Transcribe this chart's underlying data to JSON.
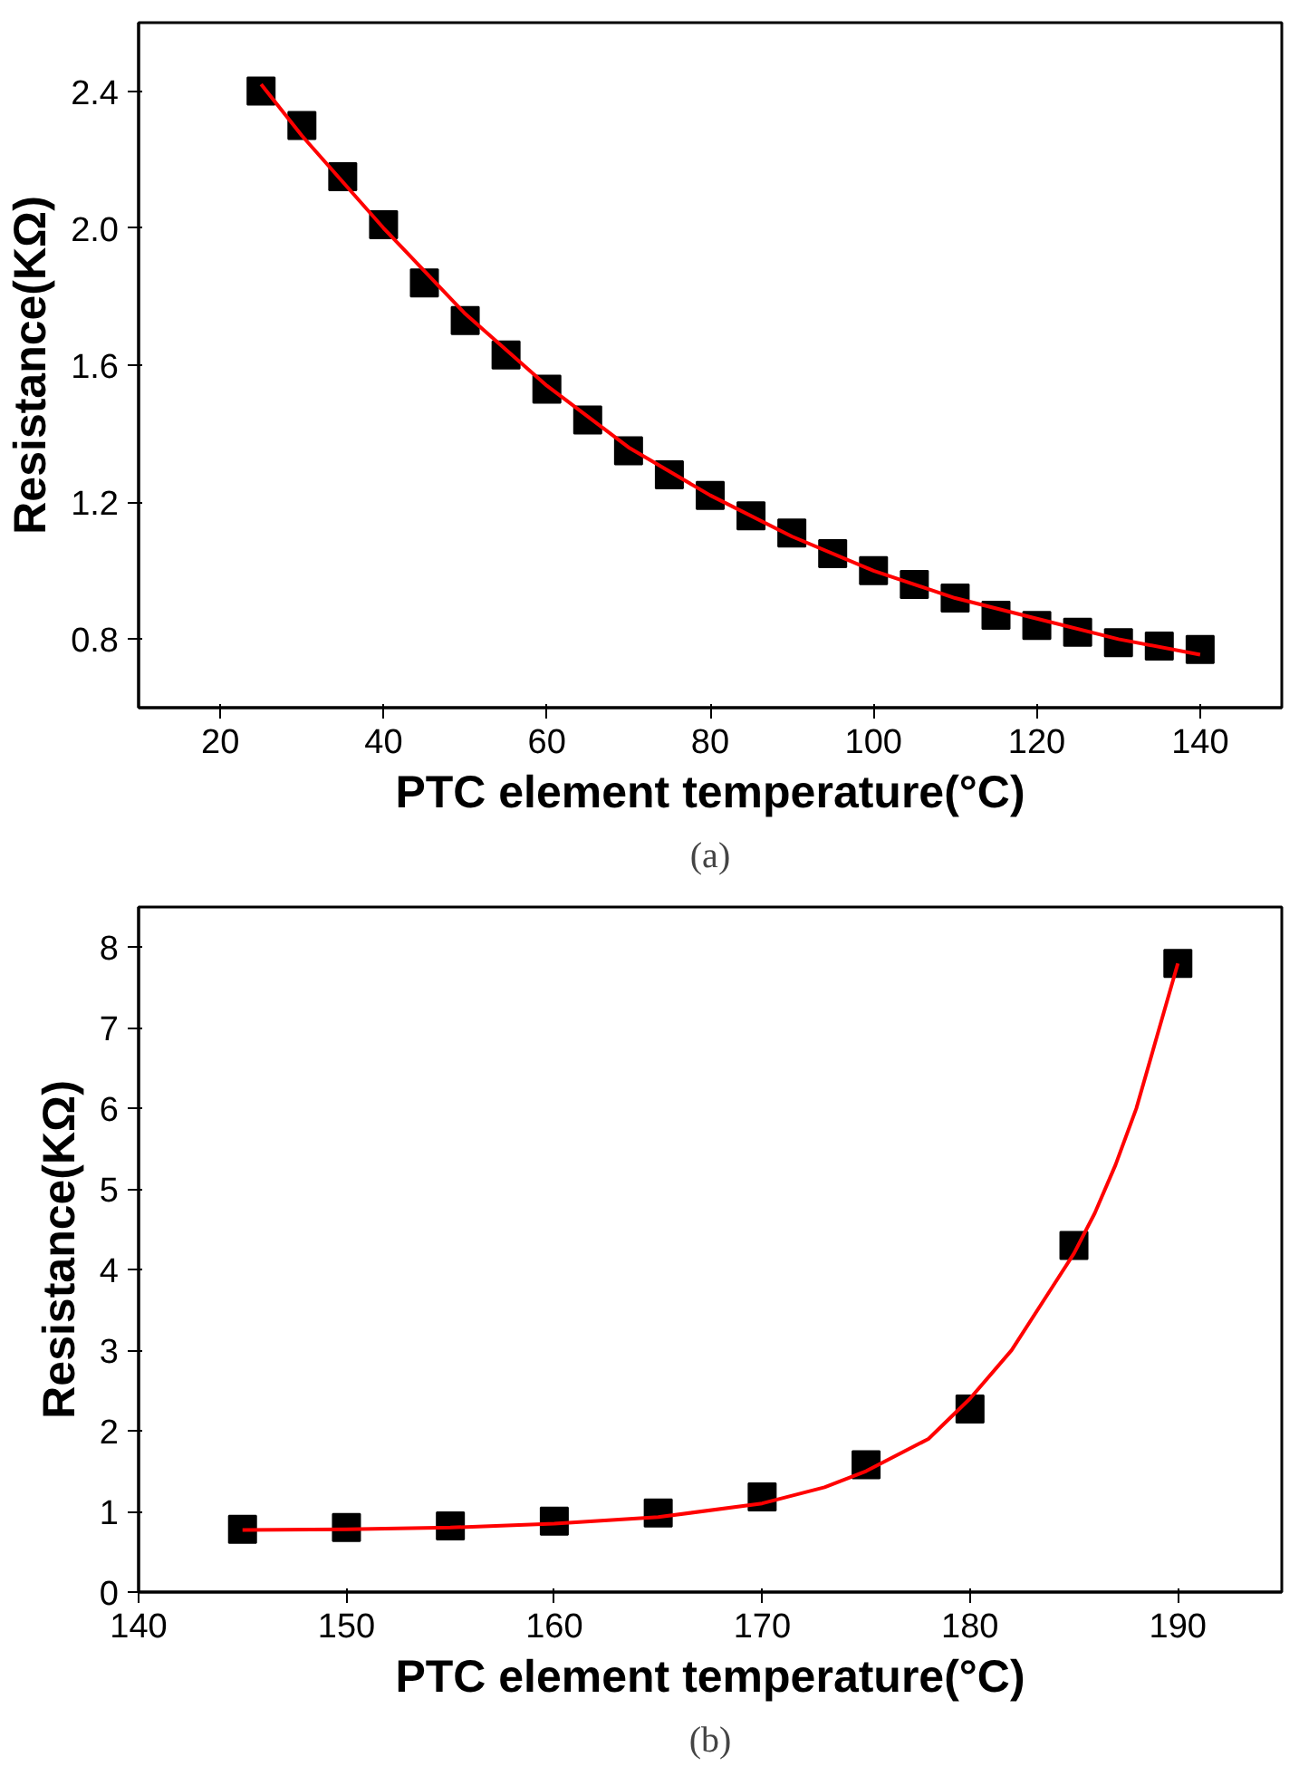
{
  "chart_data": [
    {
      "type": "scatter",
      "xlabel": "PTC element temperature(°C)",
      "ylabel": "Resistance(KΩ)",
      "annotations": [
        "(a)"
      ],
      "grid": false,
      "xlim": [
        10,
        150
      ],
      "ylim": [
        0.6,
        2.6
      ],
      "xticks": [
        20,
        40,
        60,
        80,
        100,
        120,
        140
      ],
      "yticks": [
        0.8,
        1.2,
        1.6,
        {
          "value": 2,
          "label": "2.0"
        },
        2.4
      ],
      "series": [
        {
          "marker": "square",
          "color": "#000000",
          "x": [
            25,
            30,
            35,
            40,
            45,
            50,
            55,
            60,
            65,
            70,
            75,
            80,
            85,
            90,
            95,
            100,
            105,
            110,
            115,
            120,
            125,
            130,
            135,
            140
          ],
          "values": [
            2.4,
            2.3,
            2.15,
            2.01,
            1.84,
            1.73,
            1.63,
            1.53,
            1.44,
            1.35,
            1.28,
            1.22,
            1.16,
            1.11,
            1.05,
            1.0,
            0.96,
            0.92,
            0.87,
            0.84,
            0.82,
            0.79,
            0.78,
            0.77
          ]
        },
        {
          "type": "line",
          "marker": "none",
          "color": "#ff0000",
          "line_style": "solid",
          "x": [
            25,
            30,
            40,
            50,
            60,
            70,
            80,
            90,
            100,
            110,
            120,
            130,
            140
          ],
          "values": [
            2.42,
            2.27,
            2.0,
            1.75,
            1.54,
            1.36,
            1.22,
            1.1,
            1.0,
            0.92,
            0.86,
            0.8,
            0.755
          ]
        }
      ]
    },
    {
      "type": "scatter",
      "xlabel": "PTC element temperature(°C)",
      "ylabel": "Resistance(KΩ)",
      "annotations": [
        "(b)"
      ],
      "grid": false,
      "xlim": [
        140,
        195
      ],
      "ylim": [
        0,
        8.5
      ],
      "xticks": [
        140,
        150,
        160,
        170,
        180,
        190
      ],
      "yticks": [
        0,
        1,
        2,
        3,
        4,
        5,
        6,
        7,
        8
      ],
      "series": [
        {
          "marker": "square",
          "color": "#000000",
          "x": [
            145,
            150,
            155,
            160,
            165,
            170,
            175,
            180,
            185,
            190
          ],
          "values": [
            0.78,
            0.8,
            0.82,
            0.88,
            0.98,
            1.18,
            1.58,
            2.27,
            4.3,
            7.8
          ]
        },
        {
          "type": "line",
          "marker": "none",
          "color": "#ff0000",
          "line_style": "solid",
          "x": [
            145,
            150,
            155,
            160,
            165,
            170,
            173,
            175,
            178,
            180,
            182,
            184,
            185,
            186,
            187,
            188,
            189,
            190
          ],
          "values": [
            0.77,
            0.78,
            0.8,
            0.85,
            0.93,
            1.1,
            1.3,
            1.5,
            1.9,
            2.4,
            3.0,
            3.8,
            4.2,
            4.7,
            5.3,
            6.0,
            6.9,
            7.8
          ]
        }
      ]
    }
  ]
}
